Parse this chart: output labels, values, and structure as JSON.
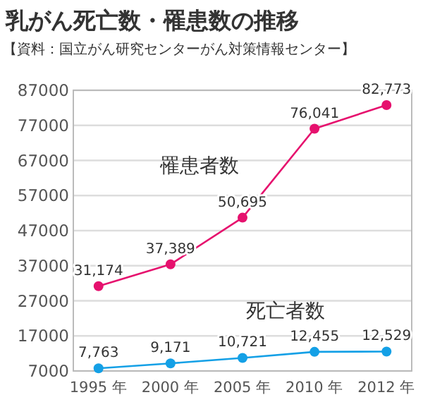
{
  "chart_data": {
    "type": "line",
    "title": "乳がん死亡数・罹患数の推移",
    "subtitle": "【資料：国立がん研究センターがん対策情報センター】",
    "categories": [
      "1995 年",
      "2000 年",
      "2005 年",
      "2010 年",
      "2012 年"
    ],
    "series": [
      {
        "name": "罹患者数",
        "color": "#e6116e",
        "values": [
          31174,
          37389,
          50695,
          76041,
          82773
        ],
        "value_labels": [
          "31,174",
          "37,389",
          "50,695",
          "76,041",
          "82,773"
        ]
      },
      {
        "name": "死亡者数",
        "color": "#14a0e6",
        "values": [
          7763,
          9171,
          10721,
          12455,
          12529
        ],
        "value_labels": [
          "7,763",
          "9,171",
          "10,721",
          "12,455",
          "12,529"
        ]
      }
    ],
    "ylim": [
      7000,
      87000
    ],
    "yticks": [
      7000,
      17000,
      27000,
      37000,
      47000,
      57000,
      67000,
      77000,
      87000
    ],
    "grid": "y",
    "marker": "circle"
  }
}
